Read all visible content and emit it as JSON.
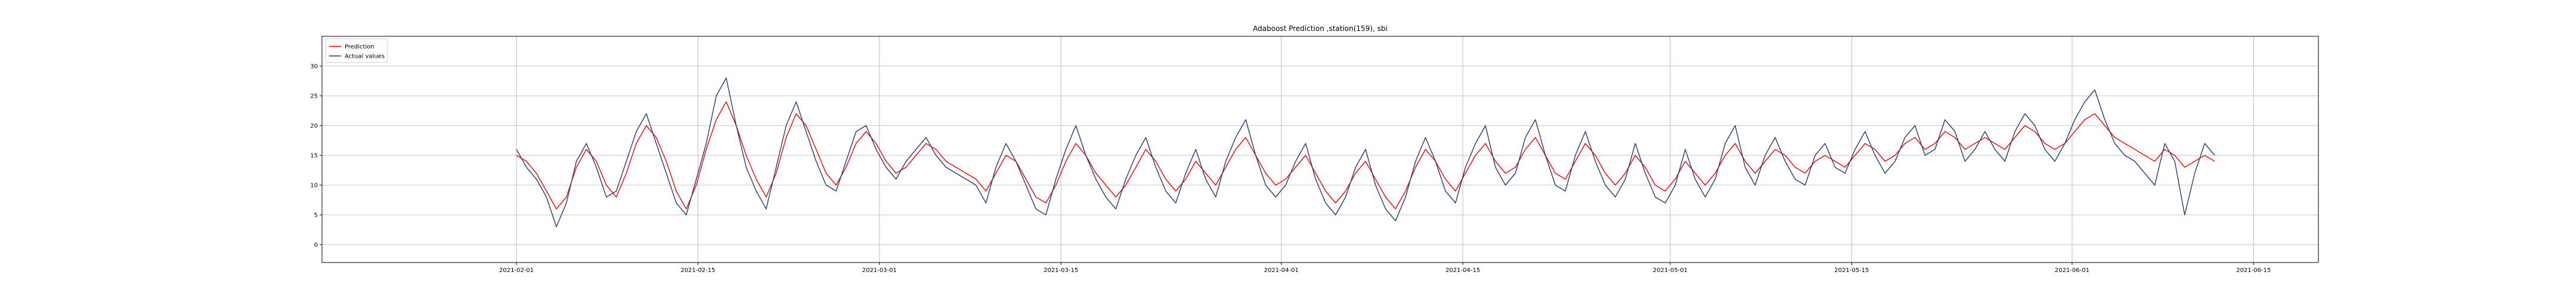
{
  "chart_data": {
    "type": "line",
    "title": "Adaboost Prediction ,station(159), sbi",
    "xlabel": "",
    "ylabel": "",
    "xlim": [
      "2021-01-17",
      "2021-06-20"
    ],
    "ylim": [
      -3,
      35
    ],
    "x_ticks": [
      "2021-02-01",
      "2021-02-15",
      "2021-03-01",
      "2021-03-15",
      "2021-04-01",
      "2021-04-15",
      "2021-05-01",
      "2021-05-15",
      "2021-06-01",
      "2021-06-15"
    ],
    "y_ticks": [
      0,
      5,
      10,
      15,
      20,
      25,
      30
    ],
    "grid": true,
    "legend_position": "top-left",
    "x_start": "2021-02-01",
    "x_end": "2021-06-12",
    "series": [
      {
        "name": "Prediction",
        "color": "#ff0000",
        "values": [
          15,
          14,
          12,
          9,
          6,
          8,
          13,
          16,
          14,
          10,
          8,
          12,
          17,
          20,
          18,
          14,
          9,
          6,
          10,
          16,
          21,
          24,
          20,
          15,
          11,
          8,
          12,
          18,
          22,
          20,
          16,
          12,
          10,
          13,
          17,
          19,
          17,
          14,
          12,
          13,
          15,
          17,
          16,
          14,
          13,
          12,
          11,
          9,
          12,
          15,
          14,
          11,
          8,
          7,
          10,
          14,
          17,
          15,
          12,
          10,
          8,
          10,
          13,
          16,
          14,
          11,
          9,
          11,
          14,
          12,
          10,
          13,
          16,
          18,
          15,
          12,
          10,
          11,
          13,
          15,
          12,
          9,
          7,
          9,
          12,
          14,
          11,
          8,
          6,
          9,
          13,
          16,
          14,
          11,
          9,
          12,
          15,
          17,
          14,
          12,
          13,
          16,
          18,
          15,
          12,
          11,
          14,
          17,
          15,
          12,
          10,
          12,
          15,
          13,
          10,
          9,
          11,
          14,
          12,
          10,
          12,
          15,
          17,
          14,
          12,
          14,
          16,
          15,
          13,
          12,
          14,
          15,
          14,
          13,
          15,
          17,
          16,
          14,
          15,
          17,
          18,
          16,
          17,
          19,
          18,
          16,
          17,
          18,
          17,
          16,
          18,
          20,
          19,
          17,
          16,
          17,
          19,
          21,
          22,
          20,
          18,
          17,
          16,
          15,
          14,
          16,
          15,
          13,
          14,
          15,
          14
        ]
      },
      {
        "name": "Actual values",
        "color": "#1f3d7a",
        "values": [
          16,
          13,
          11,
          8,
          3,
          7,
          14,
          17,
          13,
          8,
          9,
          14,
          19,
          22,
          17,
          12,
          7,
          5,
          11,
          17,
          25,
          28,
          20,
          13,
          9,
          6,
          13,
          20,
          24,
          19,
          14,
          10,
          9,
          14,
          19,
          20,
          16,
          13,
          11,
          14,
          16,
          18,
          15,
          13,
          12,
          11,
          10,
          7,
          13,
          17,
          14,
          10,
          6,
          5,
          11,
          16,
          20,
          15,
          11,
          8,
          6,
          11,
          15,
          18,
          13,
          9,
          7,
          12,
          16,
          11,
          8,
          14,
          18,
          21,
          15,
          10,
          8,
          10,
          14,
          17,
          11,
          7,
          5,
          8,
          13,
          16,
          10,
          6,
          4,
          8,
          14,
          18,
          14,
          9,
          7,
          13,
          17,
          20,
          13,
          10,
          12,
          18,
          21,
          15,
          10,
          9,
          15,
          19,
          14,
          10,
          8,
          11,
          17,
          12,
          8,
          7,
          10,
          16,
          11,
          8,
          11,
          17,
          20,
          13,
          10,
          15,
          18,
          14,
          11,
          10,
          15,
          17,
          13,
          12,
          16,
          19,
          15,
          12,
          14,
          18,
          20,
          15,
          16,
          21,
          19,
          14,
          16,
          19,
          16,
          14,
          19,
          22,
          20,
          16,
          14,
          17,
          21,
          24,
          26,
          21,
          17,
          15,
          14,
          12,
          10,
          17,
          14,
          5,
          12,
          17,
          15
        ]
      }
    ]
  }
}
